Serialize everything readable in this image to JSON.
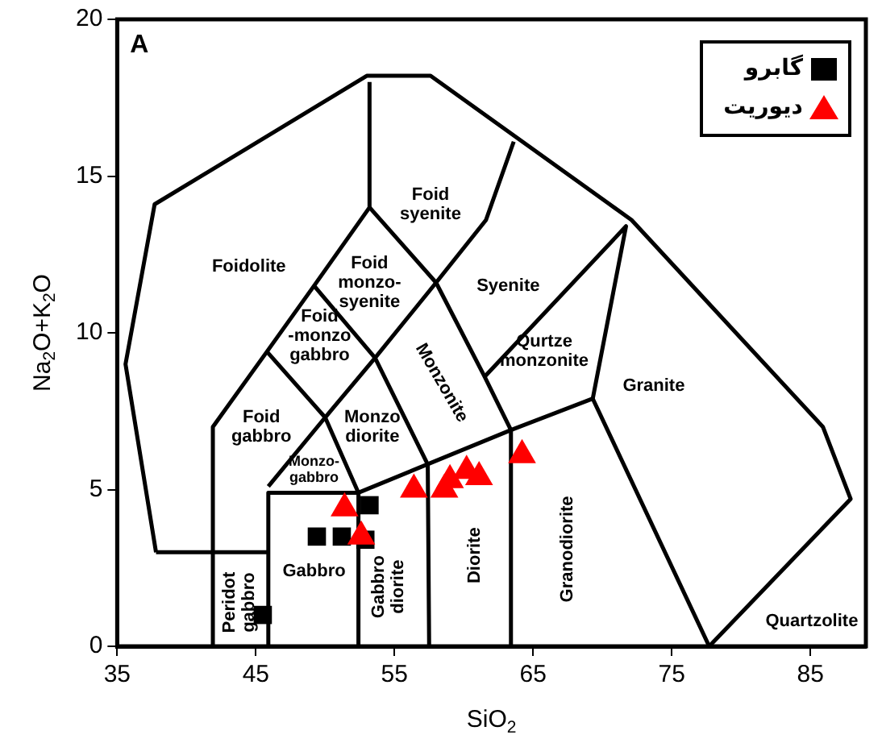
{
  "chart_data": {
    "type": "scatter",
    "title": "A",
    "xlabel": "SiO$_{2}$",
    "ylabel": "Na$_{2}$O+K$_{2}$O",
    "xlim": [
      35,
      89
    ],
    "ylim": [
      0,
      20
    ],
    "xticks": [
      35,
      45,
      55,
      65,
      75,
      85
    ],
    "yticks": [
      0,
      5,
      10,
      15,
      20
    ],
    "grid": false,
    "legend": "top right",
    "series": [
      {
        "name": "گابرو",
        "type": "scatter",
        "marker": "square",
        "color": "#000000",
        "x": [
          45.5,
          49.4,
          51.2,
          52.9,
          53.2
        ],
        "values": [
          1.0,
          3.5,
          3.5,
          3.4,
          4.5
        ]
      },
      {
        "name": "دیوریت",
        "type": "scatter",
        "marker": "triangle",
        "color": "#ff0000",
        "x": [
          51.4,
          52.6,
          56.4,
          58.6,
          59.0,
          60.2,
          61.1,
          64.2
        ],
        "values": [
          4.4,
          3.5,
          5.0,
          5.0,
          5.3,
          5.6,
          5.4,
          6.1
        ]
      },
      {
        "type": "line",
        "marker": "none",
        "color": "#000000",
        "x": [
          37.8,
          35.6,
          37.7,
          53.0,
          57.6,
          72.1,
          85.9,
          87.9,
          77.7
        ],
        "values": [
          3.0,
          9.0,
          14.1,
          18.2,
          18.2,
          13.6,
          7.0,
          4.7,
          0
        ]
      },
      {
        "type": "line",
        "marker": "none",
        "color": "#000000",
        "x": [
          37.8,
          45.8
        ],
        "values": [
          3.0,
          3.0
        ]
      },
      {
        "type": "line",
        "marker": "none",
        "color": "#000000",
        "x": [
          41.9,
          41.9,
          45.8,
          49.2,
          53.2,
          53.2
        ],
        "values": [
          0,
          7.0,
          9.4,
          11.5,
          14.0,
          18.0
        ]
      },
      {
        "type": "line",
        "marker": "none",
        "color": "#000000",
        "x": [
          45.9,
          45.9,
          52.4,
          52.4
        ],
        "values": [
          0,
          4.9,
          4.9,
          0
        ]
      },
      {
        "type": "line",
        "marker": "none",
        "color": "#000000",
        "x": [
          52.4,
          63.4,
          69.3,
          77.7
        ],
        "values": [
          4.9,
          6.9,
          7.9,
          0
        ]
      },
      {
        "type": "line",
        "marker": "none",
        "color": "#000000",
        "x": [
          45.9,
          50.0,
          52.4
        ],
        "values": [
          5.1,
          7.3,
          4.9
        ]
      },
      {
        "type": "line",
        "marker": "none",
        "color": "#000000",
        "x": [
          45.8,
          50.0,
          53.6,
          58.0,
          61.6,
          63.6
        ],
        "values": [
          9.4,
          7.3,
          9.2,
          11.6,
          13.6,
          16.1
        ]
      },
      {
        "type": "line",
        "marker": "none",
        "color": "#000000",
        "x": [
          49.2,
          53.6,
          57.4,
          57.5
        ],
        "values": [
          11.5,
          9.2,
          5.8,
          0
        ]
      },
      {
        "type": "line",
        "marker": "none",
        "color": "#000000",
        "x": [
          53.2,
          58.0,
          61.5,
          63.4,
          63.4
        ],
        "values": [
          14.0,
          11.6,
          8.6,
          6.9,
          0
        ]
      },
      {
        "type": "line",
        "marker": "none",
        "color": "#000000",
        "x": [
          61.5,
          71.7,
          69.3
        ],
        "values": [
          8.6,
          13.4,
          7.9
        ]
      }
    ],
    "annotations": [
      "Foidolite",
      "Foid\nsyenite",
      "Foid\nmonzo-\nsyenite",
      "Syenite",
      "Foid\n-monzo\ngabbro",
      "Qurtze\nmonzonite",
      "Granite",
      "Monzonite",
      "Foid\ngabbro",
      "Monzo\ndiorite",
      "Monzo-\ngabbro",
      "Gabbro",
      "Peridot\ngabbro",
      "Gabbro\ndiorite",
      "Diorite",
      "Granodiorite",
      "Quartzolite"
    ]
  }
}
